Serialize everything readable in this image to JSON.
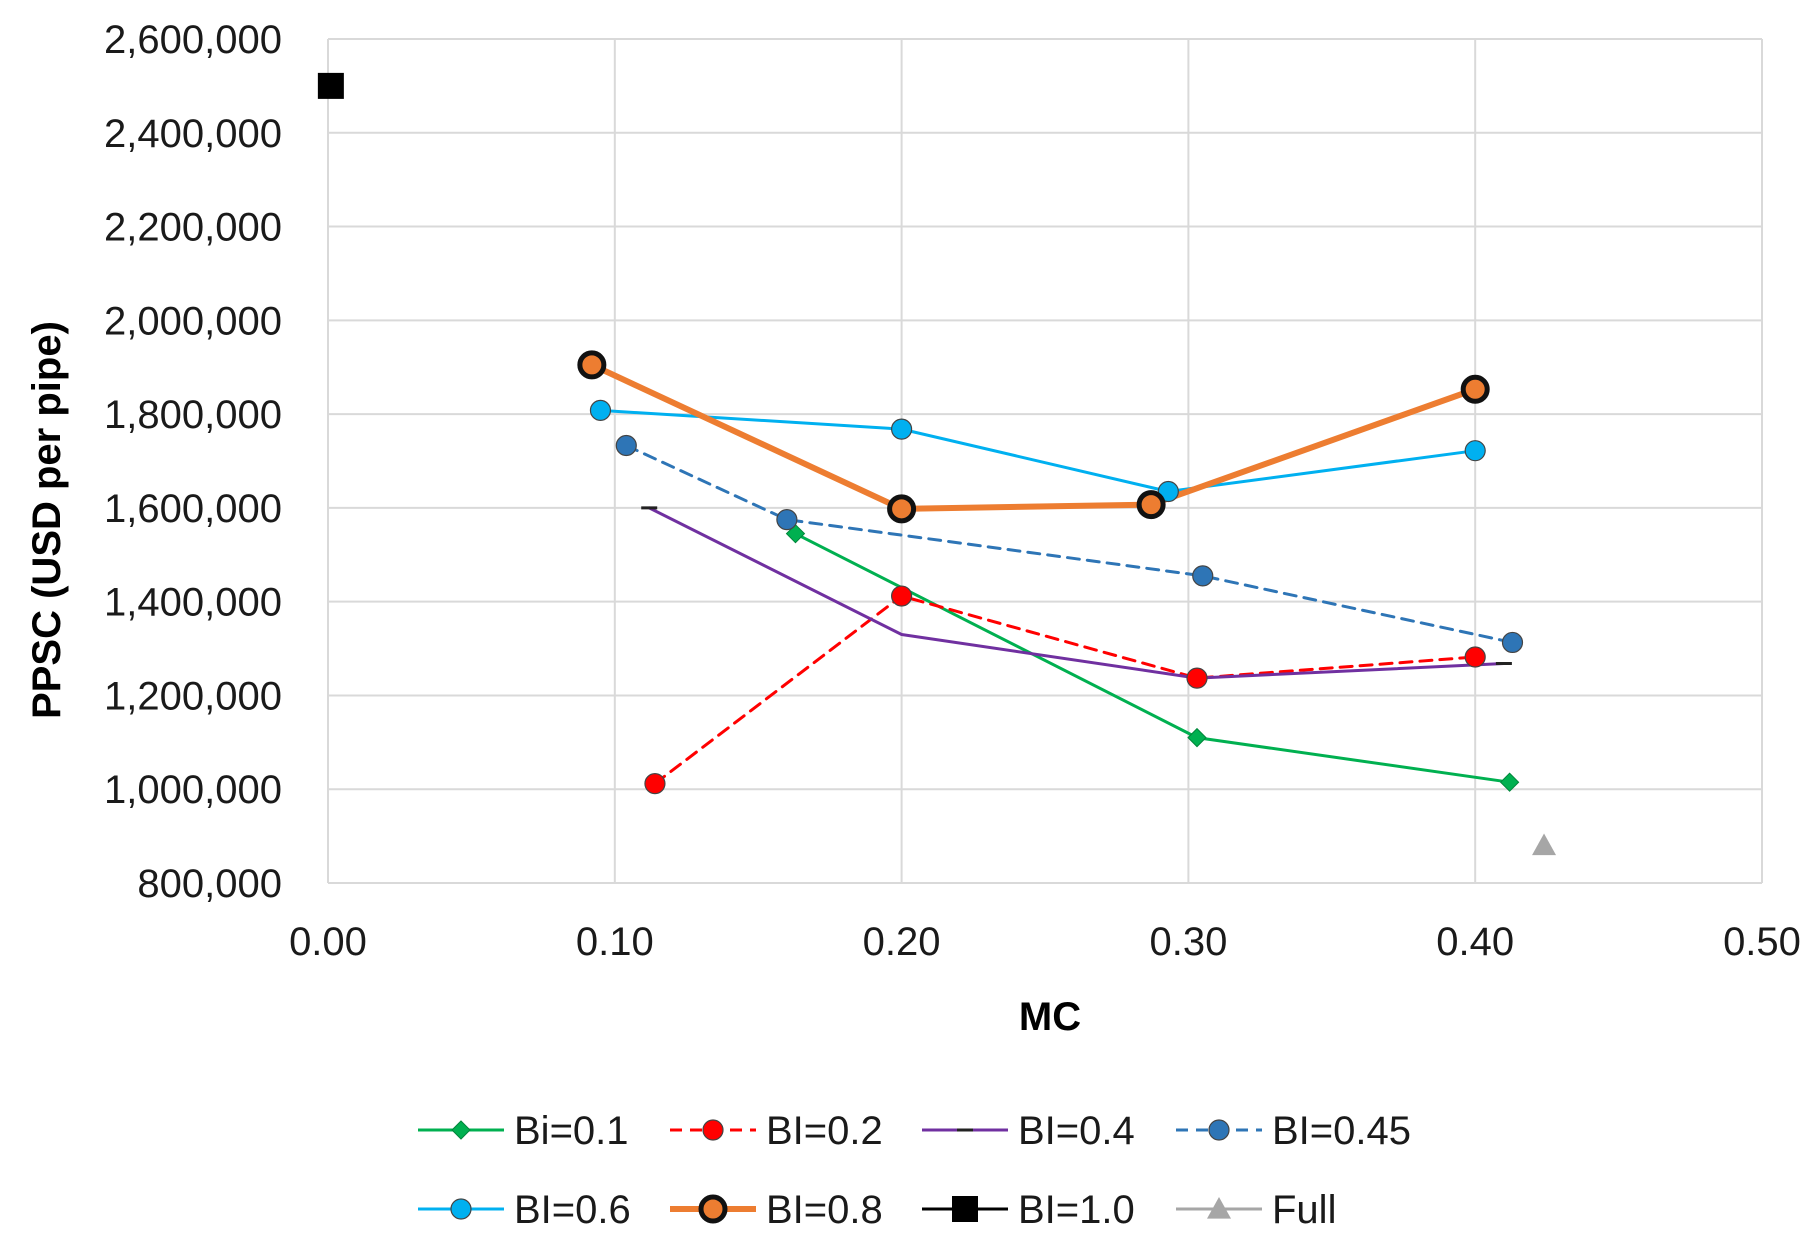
{
  "chart_data": {
    "type": "line",
    "title": "",
    "xlabel": "MC",
    "ylabel": "PPSC (USD per pipe)",
    "xlim": [
      0,
      0.5
    ],
    "ylim": [
      800000,
      2600000
    ],
    "x_ticks": [
      0,
      0.1,
      0.2,
      0.3,
      0.4,
      0.5
    ],
    "x_tick_labels": [
      "0.00",
      "0.10",
      "0.20",
      "0.30",
      "0.40",
      "0.50"
    ],
    "y_ticks": [
      800000,
      1000000,
      1200000,
      1400000,
      1600000,
      1800000,
      2000000,
      2200000,
      2400000,
      2600000
    ],
    "y_tick_labels": [
      "800,000",
      "1,000,000",
      "1,200,000",
      "1,400,000",
      "1,600,000",
      "1,800,000",
      "2,000,000",
      "2,200,000",
      "2,400,000",
      "2,600,000"
    ],
    "grid": true,
    "legend_position": "bottom",
    "series": [
      {
        "name": "Bi=0.1",
        "color": "#00b050",
        "dash": "solid",
        "marker": "diamond",
        "points": [
          [
            0.163,
            1545000
          ],
          [
            0.2,
            1430000
          ],
          [
            0.303,
            1110000
          ],
          [
            0.412,
            1015000
          ]
        ],
        "marker_points": [
          [
            0.163,
            1545000
          ],
          [
            0.303,
            1110000
          ],
          [
            0.412,
            1015000
          ]
        ]
      },
      {
        "name": "BI=0.2",
        "color": "#ff0000",
        "dash": "dashed",
        "marker": "circle",
        "points": [
          [
            0.114,
            1012000
          ],
          [
            0.2,
            1412000
          ],
          [
            0.303,
            1237000
          ],
          [
            0.4,
            1282000
          ]
        ],
        "marker_points": [
          [
            0.114,
            1012000
          ],
          [
            0.2,
            1412000
          ],
          [
            0.303,
            1237000
          ],
          [
            0.4,
            1282000
          ]
        ]
      },
      {
        "name": "BI=0.4",
        "color": "#7030a0",
        "dash": "solid",
        "marker": "dash",
        "points": [
          [
            0.112,
            1600000
          ],
          [
            0.2,
            1330000
          ],
          [
            0.303,
            1237000
          ],
          [
            0.41,
            1268000
          ]
        ],
        "marker_points": [
          [
            0.112,
            1600000
          ],
          [
            0.41,
            1268000
          ]
        ]
      },
      {
        "name": "BI=0.45",
        "color": "#2e75b6",
        "dash": "dashed",
        "marker": "circle",
        "points": [
          [
            0.104,
            1733000
          ],
          [
            0.16,
            1575000
          ],
          [
            0.305,
            1455000
          ],
          [
            0.413,
            1313000
          ]
        ],
        "marker_points": [
          [
            0.104,
            1733000
          ],
          [
            0.16,
            1575000
          ],
          [
            0.305,
            1455000
          ],
          [
            0.413,
            1313000
          ]
        ]
      },
      {
        "name": "BI=0.6",
        "color": "#00b0f0",
        "dash": "solid",
        "marker": "circle",
        "points": [
          [
            0.095,
            1808000
          ],
          [
            0.2,
            1768000
          ],
          [
            0.293,
            1635000
          ],
          [
            0.4,
            1722000
          ]
        ],
        "marker_points": [
          [
            0.095,
            1808000
          ],
          [
            0.2,
            1768000
          ],
          [
            0.293,
            1635000
          ],
          [
            0.4,
            1722000
          ]
        ]
      },
      {
        "name": "BI=0.8",
        "color": "#ed7d31",
        "dash": "solid",
        "marker": "ring",
        "points": [
          [
            0.092,
            1905000
          ],
          [
            0.2,
            1598000
          ],
          [
            0.287,
            1607000
          ],
          [
            0.4,
            1853000
          ]
        ],
        "marker_points": [
          [
            0.092,
            1905000
          ],
          [
            0.2,
            1598000
          ],
          [
            0.287,
            1607000
          ],
          [
            0.4,
            1853000
          ]
        ]
      },
      {
        "name": "BI=1.0",
        "color": "#000000",
        "dash": "solid",
        "marker": "square",
        "points": [
          [
            0.001,
            2500000
          ]
        ],
        "marker_points": [
          [
            0.001,
            2500000
          ]
        ]
      },
      {
        "name": "Full",
        "color": "#a6a6a6",
        "dash": "solid",
        "marker": "triangle",
        "points": [
          [
            0.424,
            880000
          ]
        ],
        "marker_points": [
          [
            0.424,
            880000
          ]
        ]
      }
    ]
  }
}
